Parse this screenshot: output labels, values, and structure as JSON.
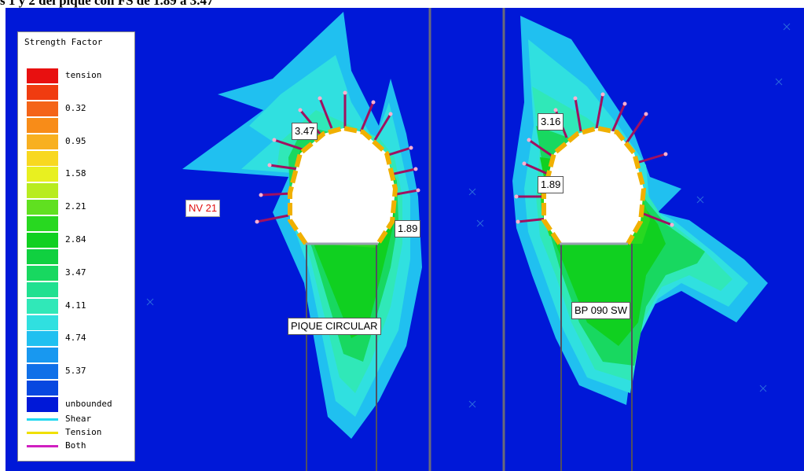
{
  "caption": "s 1 y 2 del pique con FS de 1.89 a 3.47",
  "legend": {
    "title": "Strength Factor",
    "bands": [
      {
        "label": "tension",
        "color": "#e81010"
      },
      {
        "label": "",
        "color": "#f03c10"
      },
      {
        "label": "0.32",
        "color": "#f46418"
      },
      {
        "label": "",
        "color": "#f88c18"
      },
      {
        "label": "0.95",
        "color": "#f8b020"
      },
      {
        "label": "",
        "color": "#f8d820"
      },
      {
        "label": "1.58",
        "color": "#e8f020"
      },
      {
        "label": "",
        "color": "#b8ec20"
      },
      {
        "label": "2.21",
        "color": "#60e020"
      },
      {
        "label": "",
        "color": "#28d820"
      },
      {
        "label": "2.84",
        "color": "#10d020"
      },
      {
        "label": "",
        "color": "#10d040"
      },
      {
        "label": "3.47",
        "color": "#18d860"
      },
      {
        "label": "",
        "color": "#20e090"
      },
      {
        "label": "4.11",
        "color": "#30e8b8"
      },
      {
        "label": "",
        "color": "#30e0e0"
      },
      {
        "label": "4.74",
        "color": "#20c0f0"
      },
      {
        "label": "",
        "color": "#1898f0"
      },
      {
        "label": "5.37",
        "color": "#1070e8"
      },
      {
        "label": "",
        "color": "#0848e0"
      },
      {
        "label": "unbounded",
        "color": "#0018d8"
      }
    ],
    "lines": [
      {
        "label": "Shear",
        "color": "#20d8f0"
      },
      {
        "label": "Tension",
        "color": "#f0e000"
      },
      {
        "label": "Both",
        "color": "#d020c0"
      }
    ]
  },
  "labels": {
    "level": "NV 21",
    "left_top": "3.47",
    "left_right": "1.89",
    "left_name": "PIQUE CIRCULAR",
    "right_top": "3.16",
    "right_left": "1.89",
    "right_name": "BP 090 SW"
  },
  "colors": {
    "background": "#0018d8",
    "excavation": "#ffffff",
    "support": "#f0b000",
    "bolt": "#a01060"
  }
}
